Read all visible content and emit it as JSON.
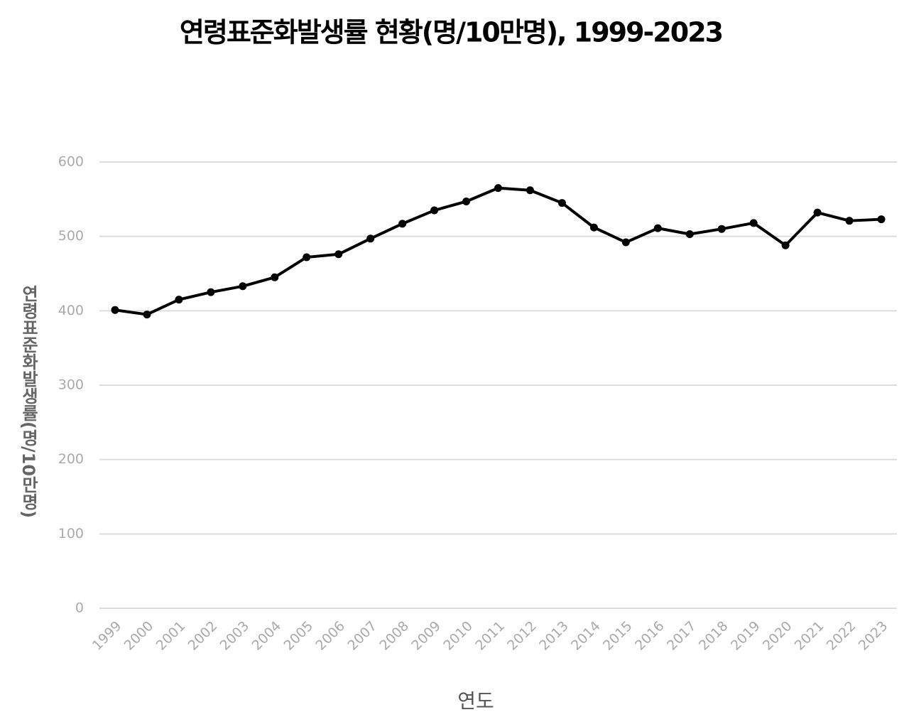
{
  "chart_data": {
    "type": "line",
    "title": "연령표준화발생률 현황(명/10만명),  1999-2023",
    "x_label": "연도",
    "y_label": "연령표준화발생률(명/10만명)",
    "categories": [
      "1999",
      "2000",
      "2001",
      "2002",
      "2003",
      "2004",
      "2005",
      "2006",
      "2007",
      "2008",
      "2009",
      "2010",
      "2011",
      "2012",
      "2013",
      "2014",
      "2015",
      "2016",
      "2017",
      "2018",
      "2019",
      "2020",
      "2021",
      "2022",
      "2023"
    ],
    "values": [
      401,
      395,
      415,
      425,
      433,
      445,
      472,
      476,
      497,
      517,
      535,
      547,
      565,
      562,
      545,
      512,
      492,
      511,
      503,
      510,
      518,
      488,
      532,
      521,
      523
    ],
    "color": "#000000",
    "ylim": [
      0,
      600
    ],
    "yticks": [
      0,
      100,
      200,
      300,
      400,
      500,
      600
    ],
    "grid": true
  }
}
